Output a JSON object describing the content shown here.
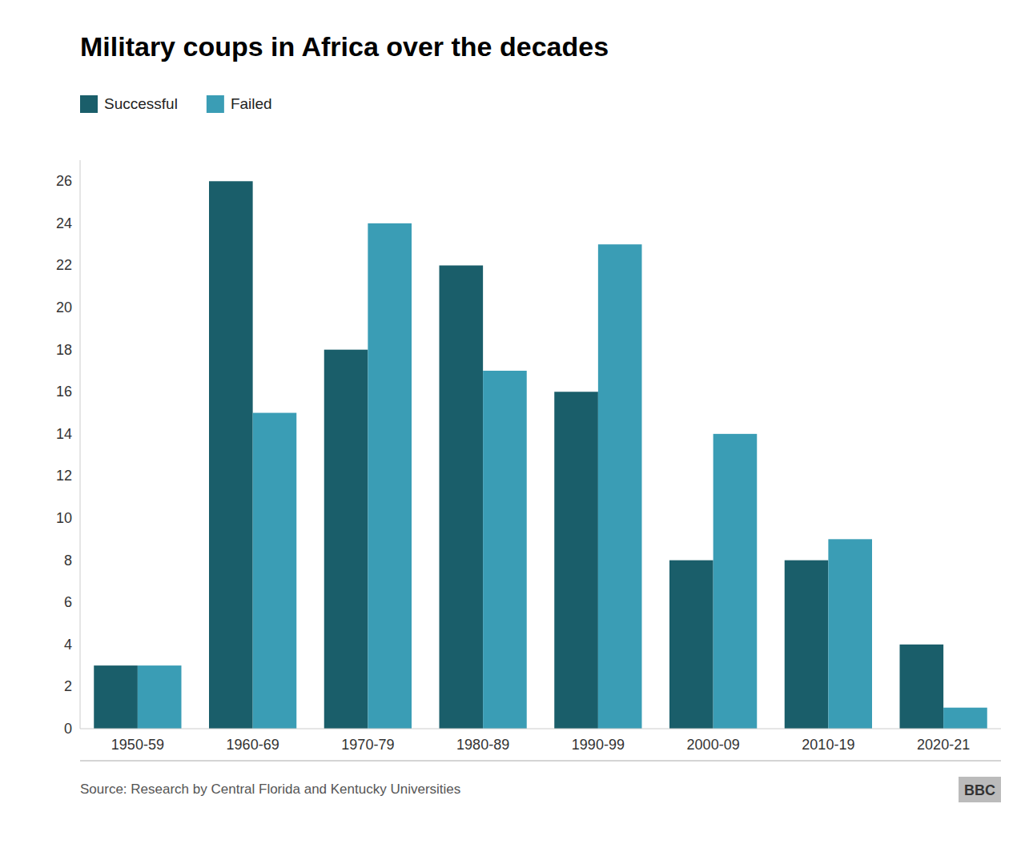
{
  "chart_data": {
    "type": "bar",
    "title": "Military coups in Africa over the decades",
    "categories": [
      "1950-59",
      "1960-69",
      "1970-79",
      "1980-89",
      "1990-99",
      "2000-09",
      "2010-19",
      "2020-21"
    ],
    "series": [
      {
        "name": "Successful",
        "color": "#1a5e6a",
        "values": [
          3,
          26,
          18,
          22,
          16,
          8,
          8,
          4
        ]
      },
      {
        "name": "Failed",
        "color": "#3a9db5",
        "values": [
          3,
          15,
          24,
          17,
          23,
          14,
          9,
          1
        ]
      }
    ],
    "ylim": [
      0,
      27
    ],
    "yticks": [
      0,
      2,
      4,
      6,
      8,
      10,
      12,
      14,
      16,
      18,
      20,
      22,
      24,
      26
    ],
    "grid": false,
    "legend": "top-left",
    "annotations": [
      "Source: Research by Central Florida and Kentucky Universities",
      "BBC"
    ]
  }
}
